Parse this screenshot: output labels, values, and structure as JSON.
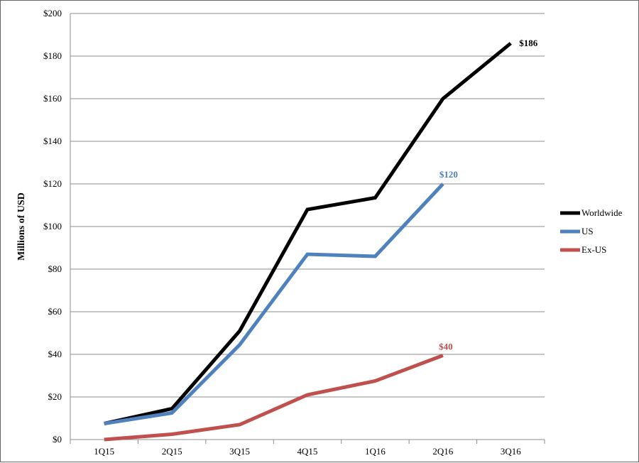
{
  "chart_data": {
    "type": "line",
    "title": "",
    "xlabel": "",
    "ylabel": "Millions of USD",
    "categories": [
      "1Q15",
      "2Q15",
      "3Q15",
      "4Q15",
      "1Q16",
      "2Q16",
      "3Q16"
    ],
    "y_ticks": [
      "$0",
      "$20",
      "$40",
      "$60",
      "$80",
      "$100",
      "$120",
      "$140",
      "$160",
      "$180",
      "$200"
    ],
    "ylim": [
      0,
      200
    ],
    "grid": true,
    "legend_position": "right",
    "series": [
      {
        "name": "Worldwide",
        "color": "#000000",
        "values": [
          7.5,
          14.5,
          51,
          108,
          113.5,
          160,
          186
        ],
        "end_label": "$186"
      },
      {
        "name": "US",
        "color": "#4f81bd",
        "values": [
          7.5,
          12.5,
          44.5,
          87,
          86,
          120,
          null
        ],
        "end_label": "$120"
      },
      {
        "name": "Ex-US",
        "color": "#c0504d",
        "values": [
          0,
          2.5,
          7,
          21,
          27.5,
          39.5,
          null
        ],
        "end_label": "$40"
      }
    ]
  }
}
